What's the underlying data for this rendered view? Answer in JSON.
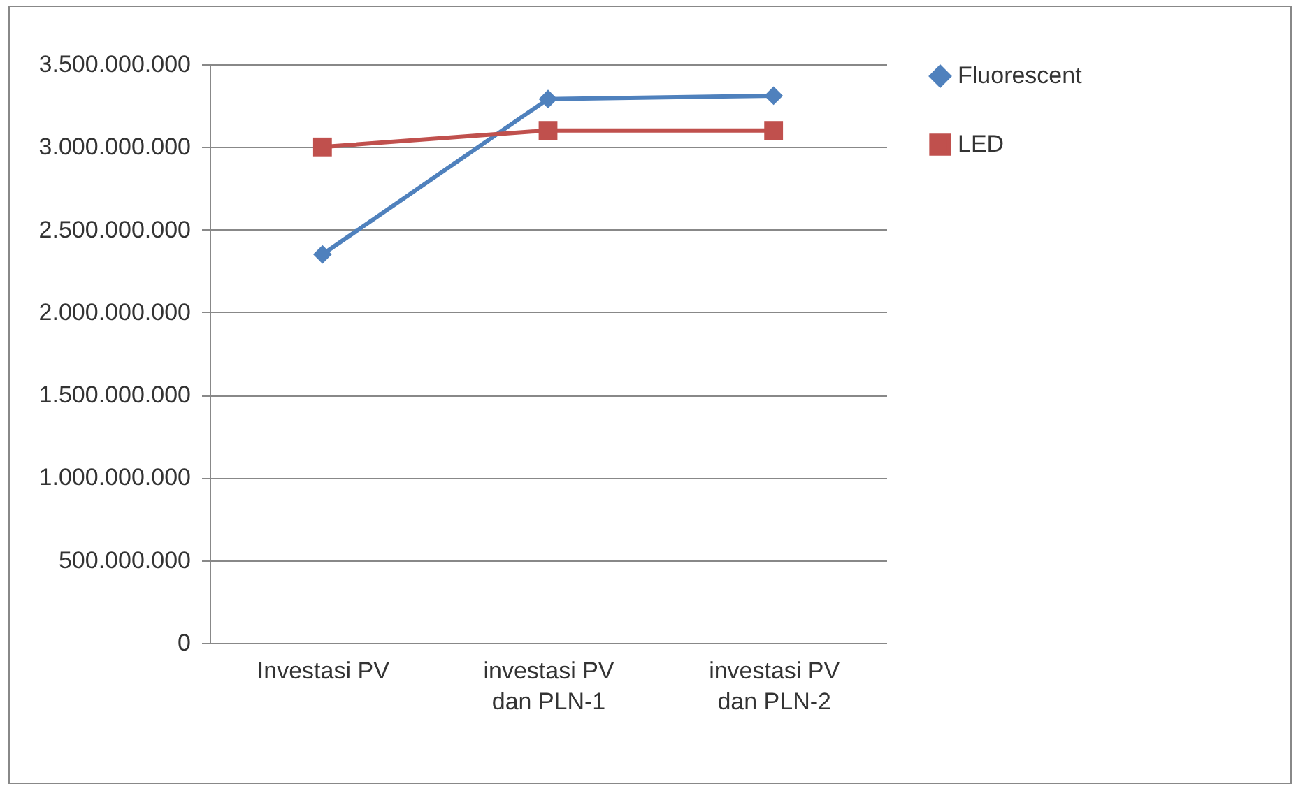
{
  "chart_data": {
    "type": "line",
    "categories": [
      "Investasi PV",
      "investasi PV\ndan PLN-1",
      "investasi PV\ndan PLN-2"
    ],
    "series": [
      {
        "name": "Fluorescent",
        "color": "#4f81bd",
        "marker": "diamond",
        "values": [
          2350000000,
          3290000000,
          3310000000
        ]
      },
      {
        "name": "LED",
        "color": "#c0504d",
        "marker": "square",
        "values": [
          3000000000,
          3100000000,
          3100000000
        ]
      }
    ],
    "ylim": [
      0,
      3500000000
    ],
    "yticks": [
      {
        "value": 0,
        "label": "0"
      },
      {
        "value": 500000000,
        "label": "500.000.000"
      },
      {
        "value": 1000000000,
        "label": "1.000.000.000"
      },
      {
        "value": 1500000000,
        "label": "1.500.000.000"
      },
      {
        "value": 2000000000,
        "label": "2.000.000.000"
      },
      {
        "value": 2500000000,
        "label": "2.500.000.000"
      },
      {
        "value": 3000000000,
        "label": "3.000.000.000"
      },
      {
        "value": 3500000000,
        "label": "3.500.000.000"
      }
    ],
    "grid": "y",
    "legend": "right"
  }
}
